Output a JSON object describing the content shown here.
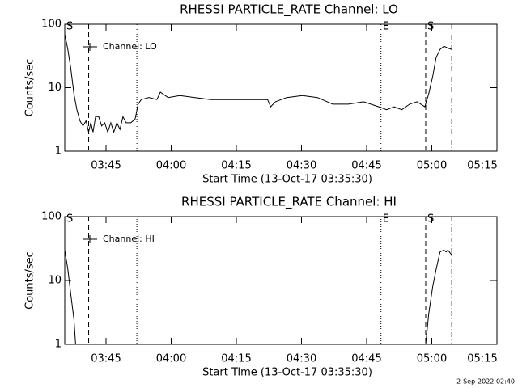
{
  "chart_data": [
    {
      "type": "line",
      "title": "RHESSI PARTICLE_RATE Channel: LO",
      "y_label": "Counts/sec",
      "x_label": "Start Time (13-Oct-17 03:35:30)",
      "log_y": true,
      "color": "#000000",
      "xlim": [
        0,
        99.5
      ],
      "ylim": [
        1,
        100
      ],
      "yticks": [
        1,
        10,
        100
      ],
      "xticks": [
        {
          "value": 9.5,
          "label": "03:45"
        },
        {
          "value": 24.5,
          "label": "04:00"
        },
        {
          "value": 39.5,
          "label": "04:15"
        },
        {
          "value": 54.5,
          "label": "04:30"
        },
        {
          "value": 69.5,
          "label": "04:45"
        },
        {
          "value": 84.5,
          "label": "05:00"
        },
        {
          "value": 99.5,
          "label": "05:15"
        }
      ],
      "series": [
        {
          "name": "Channel: LO",
          "color": "#000000",
          "x": [
            0,
            0.7,
            1.4,
            2.1,
            2.8,
            3.5,
            4.2,
            4.9,
            5.5,
            6.0,
            6.5,
            7.1,
            7.8,
            8.5,
            9.2,
            9.9,
            10.6,
            11.3,
            12.0,
            12.7,
            13.4,
            14.1,
            15.2,
            16.2,
            16.9,
            17.6,
            19.4,
            21.2,
            22.0,
            23.8,
            26.5,
            30.0,
            33.5,
            38.8,
            44.1,
            46.7,
            47.4,
            48.5,
            51.1,
            54.7,
            58.2,
            61.7,
            65.3,
            68.8,
            72.3,
            74.1,
            75.8,
            77.6,
            79.4,
            81.1,
            82.9,
            83.8,
            84.7,
            85.5,
            86.4,
            87.3,
            88.2,
            89.1
          ],
          "values": [
            70,
            40,
            20,
            8,
            4.5,
            3,
            2.5,
            3,
            2,
            2.8,
            2,
            3.5,
            3.5,
            2.5,
            2.8,
            2,
            2.8,
            2,
            2.8,
            2.2,
            3.5,
            2.8,
            2.8,
            3.2,
            5.5,
            6.5,
            7,
            6.5,
            8.5,
            7,
            7.5,
            7,
            6.5,
            6.5,
            6.5,
            6.5,
            5,
            6,
            7,
            7.5,
            7,
            5.5,
            5.5,
            6,
            5,
            4.5,
            5,
            4.5,
            5.5,
            6,
            5,
            8,
            15,
            30,
            40,
            45,
            42,
            40
          ]
        }
      ],
      "vlines": [
        {
          "x": 5.5,
          "style": "dashed"
        },
        {
          "x": 16.6,
          "style": "dotted"
        },
        {
          "x": 72.8,
          "style": "dotted"
        },
        {
          "x": 83.1,
          "style": "dashed"
        },
        {
          "x": 89.1,
          "style": "dashdot"
        }
      ],
      "annotations": [
        {
          "x": 0,
          "text": "S"
        },
        {
          "x": 72.8,
          "text": "E"
        },
        {
          "x": 83.1,
          "text": "S"
        }
      ]
    },
    {
      "type": "line",
      "title": "RHESSI PARTICLE_RATE Channel: HI",
      "y_label": "Counts/sec",
      "x_label": "Start Time (13-Oct-17 03:35:30)",
      "log_y": true,
      "color": "#000000",
      "xlim": [
        0,
        99.5
      ],
      "ylim": [
        1,
        100
      ],
      "yticks": [
        1,
        10,
        100
      ],
      "xticks": [
        {
          "value": 9.5,
          "label": "03:45"
        },
        {
          "value": 24.5,
          "label": "04:00"
        },
        {
          "value": 39.5,
          "label": "04:15"
        },
        {
          "value": 54.5,
          "label": "04:30"
        },
        {
          "value": 69.5,
          "label": "04:45"
        },
        {
          "value": 84.5,
          "label": "05:00"
        },
        {
          "value": 99.5,
          "label": "05:15"
        }
      ],
      "series": [
        {
          "name": "Channel: HI",
          "color": "#000000",
          "x": [
            0,
            0.7,
            1.4,
            2.1,
            2.5,
            40,
            83.1,
            83.8,
            84.7,
            85.5,
            86.4,
            87.3,
            87.8,
            88.2,
            89.1
          ],
          "values": [
            30,
            15,
            6,
            2.5,
            1,
            null,
            1,
            3,
            8,
            15,
            28,
            30,
            28,
            30,
            25
          ]
        }
      ],
      "vlines": [
        {
          "x": 5.5,
          "style": "dashed"
        },
        {
          "x": 16.6,
          "style": "dotted"
        },
        {
          "x": 72.8,
          "style": "dotted"
        },
        {
          "x": 83.1,
          "style": "dashed"
        },
        {
          "x": 89.1,
          "style": "dashdot"
        }
      ],
      "annotations": [
        {
          "x": 0,
          "text": "S"
        },
        {
          "x": 72.8,
          "text": "E"
        },
        {
          "x": 83.1,
          "text": "S"
        }
      ]
    }
  ],
  "footer": "2-Sep-2022 02:40"
}
